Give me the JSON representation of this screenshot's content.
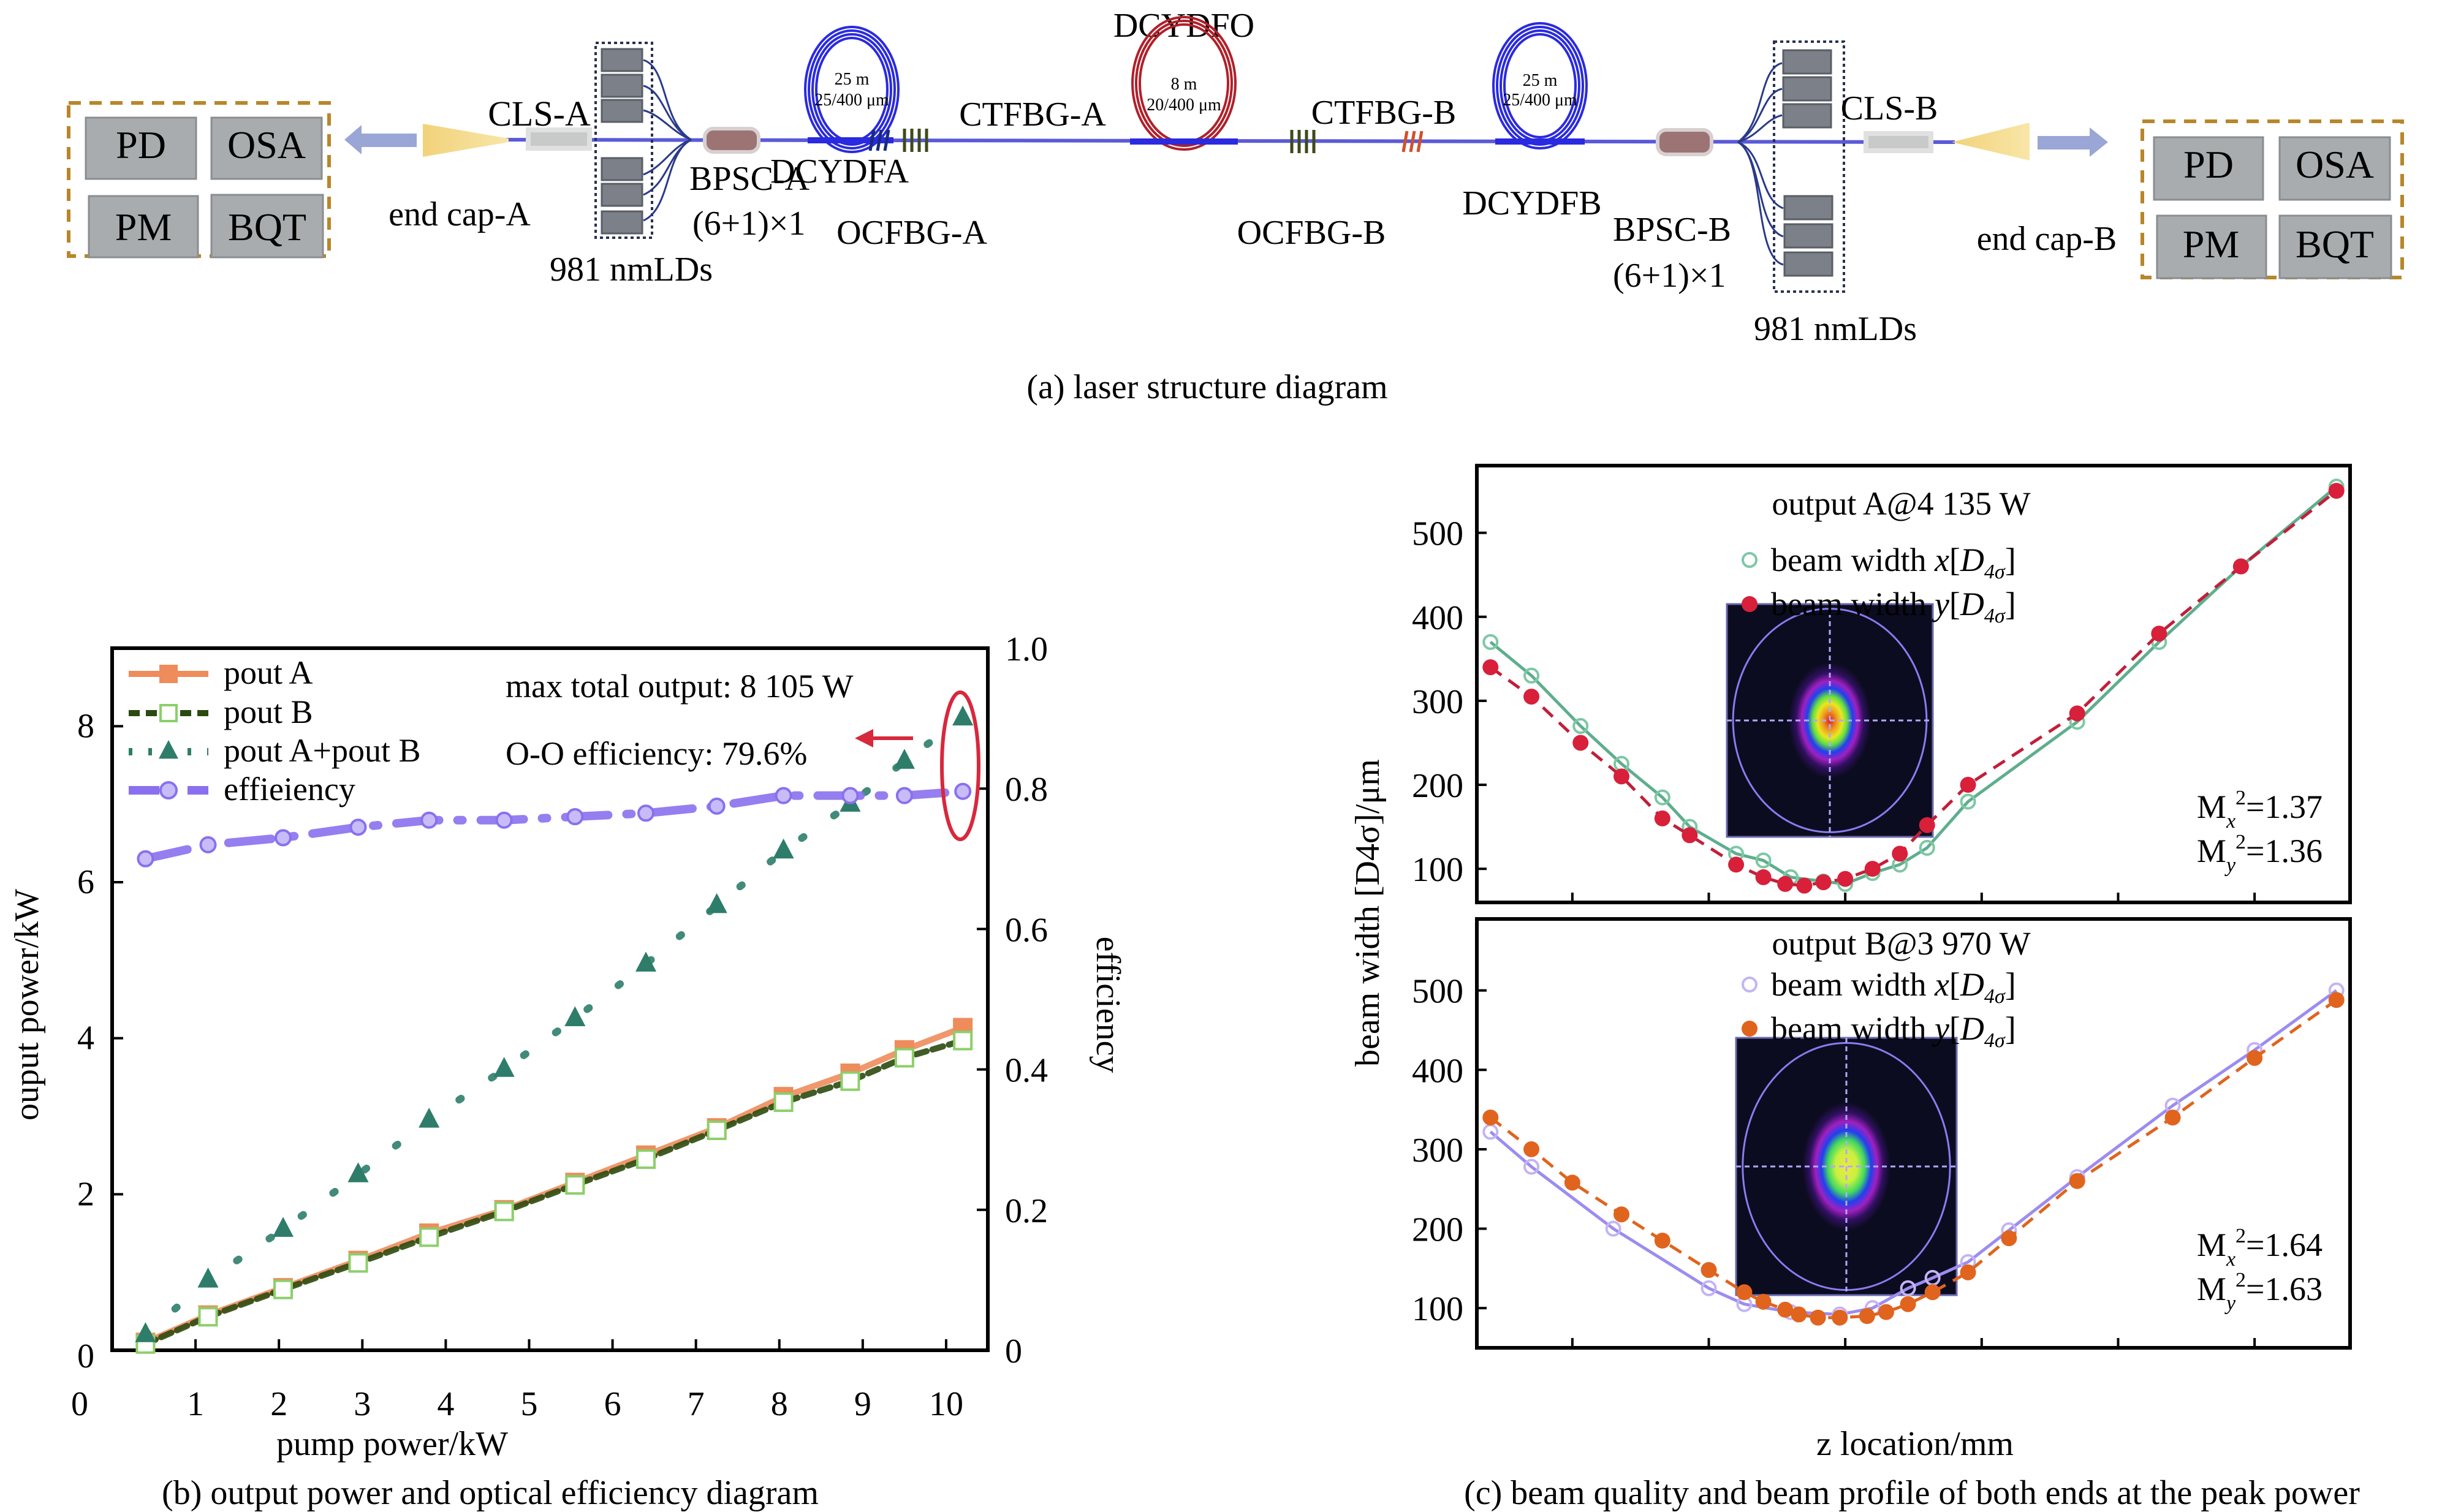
{
  "panel_a": {
    "caption": "(a) laser structure diagram",
    "left_instruments": [
      "PD",
      "OSA",
      "PM",
      "BQT"
    ],
    "right_instruments": [
      "PD",
      "OSA",
      "PM",
      "BQT"
    ],
    "labels": {
      "cls_a": "CLS-A",
      "cls_b": "CLS-B",
      "end_cap_a": "end cap-A",
      "end_cap_b": "end cap-B",
      "bpsc_a": "BPSC-A",
      "bpsc_b": "BPSC-B",
      "combiner_a": "(6+1)×1",
      "combiner_b": "(6+1)×1",
      "lds_a": "981 nmLDs",
      "lds_b": "981 nmLDs",
      "dcydfa": "DCYDFA",
      "dcydfb": "DCYDFB",
      "dcydfo": "DCYDFO",
      "ctfbg_a": "CTFBG-A",
      "ctfbg_b": "CTFBG-B",
      "ocfbg_a": "OCFBG-A",
      "ocfbg_b": "OCFBG-B"
    },
    "coils": {
      "a": {
        "length": "25 m",
        "fiber": "25/400 μm"
      },
      "o": {
        "length": "8 m",
        "fiber": "20/400 μm"
      },
      "b": {
        "length": "25 m",
        "fiber": "25/400 μm"
      }
    },
    "colors": {
      "fiber": "#5a5ad8",
      "gain_coil": "#2a2ae0",
      "oscillator_coil": "#b0202a",
      "instrument_box": "#a8acae",
      "instrument_border": "#b8862a",
      "ld_box": "#7c8088",
      "bpsc": "#9c7474",
      "end_cap": "#f2d27a",
      "arrow": "#9aa6d6",
      "ctfbg_a": "#1a2a7a",
      "ocfbg": "#3e4a1a",
      "ctfbg_b": "#d0502a"
    }
  },
  "chart_data": [
    {
      "id": "b",
      "type": "line",
      "title": "",
      "caption": "(b) output power and optical efficiency diagram",
      "xlabel": "pump power/kW",
      "ylabel": "ouput power/kW",
      "y2label": "efficiency",
      "xlim": [
        0,
        10.5
      ],
      "ylim": [
        0,
        9
      ],
      "y2lim": [
        0,
        1.0
      ],
      "xticks": [
        "0",
        "1",
        "2",
        "3",
        "4",
        "5",
        "6",
        "7",
        "8",
        "9",
        "10"
      ],
      "yticks": [
        "0",
        "2",
        "4",
        "6",
        "8"
      ],
      "y2ticks": [
        "0",
        "0.2",
        "0.4",
        "0.6",
        "0.8",
        "1.0"
      ],
      "x": [
        0.4,
        1.15,
        2.05,
        2.95,
        3.8,
        4.7,
        5.55,
        6.4,
        7.25,
        8.05,
        8.85,
        9.5,
        10.2
      ],
      "series": [
        {
          "name": "pout A",
          "axis": "left",
          "color": "#ee8c5c",
          "style": "solid-square",
          "values": [
            0.1,
            0.45,
            0.8,
            1.15,
            1.5,
            1.8,
            2.15,
            2.5,
            2.85,
            3.25,
            3.55,
            3.85,
            4.135
          ]
        },
        {
          "name": "pout B",
          "axis": "left",
          "color": "#2c4a10",
          "marker_color": "#8ccf6a",
          "style": "dashed-open-square",
          "values": [
            0.08,
            0.43,
            0.78,
            1.12,
            1.45,
            1.78,
            2.12,
            2.45,
            2.82,
            3.18,
            3.45,
            3.75,
            3.97
          ]
        },
        {
          "name": "pout A+pout B",
          "axis": "left",
          "color": "#2e7d6a",
          "style": "dotted-triangle",
          "values": [
            0.2,
            0.9,
            1.55,
            2.25,
            2.95,
            3.6,
            4.25,
            4.95,
            5.7,
            6.4,
            7.0,
            7.55,
            8.105
          ]
        },
        {
          "name": "effieiency",
          "axis": "right",
          "color": "#8a70ee",
          "style": "dashdot-circle",
          "values": [
            0.7,
            0.72,
            0.73,
            0.745,
            0.755,
            0.755,
            0.76,
            0.765,
            0.775,
            0.79,
            0.79,
            0.79,
            0.796
          ]
        }
      ],
      "annotations": [
        "max total output: 8 105 W",
        "O-O efficiency: 79.6%"
      ],
      "highlight_color": "#d8283c",
      "legend": "top-left"
    },
    {
      "id": "c-top",
      "type": "scatter",
      "title": "output A@4 135 W",
      "xlabel": "",
      "ylabel": "beam width [D4σ]/μm",
      "xlim": [
        396.5,
        428.5
      ],
      "ylim": [
        60,
        580
      ],
      "xticks": [
        "400",
        "405",
        "410",
        "415",
        "420",
        "425"
      ],
      "yticks": [
        "100",
        "200",
        "300",
        "400",
        "500"
      ],
      "legend": "top-center",
      "legend_entries": [
        {
          "prefix": "beam width ",
          "var": "x",
          "sub": "4σ",
          "symbol": "D",
          "color": "#7cc8a4",
          "marker": "open-circle"
        },
        {
          "prefix": "beam width ",
          "var": "y",
          "sub": "4σ",
          "symbol": "D",
          "color": "#d8203a",
          "marker": "filled-circle"
        }
      ],
      "m2": [
        {
          "axis": "x",
          "value": "=1.37"
        },
        {
          "axis": "y",
          "value": "=1.36"
        }
      ],
      "series": [
        {
          "name": "beam width x",
          "color": "#5fae8e",
          "line": "solid",
          "x": [
            397,
            398.5,
            400.3,
            401.8,
            403.3,
            404.3,
            406,
            407,
            408,
            409.2,
            410,
            411,
            412,
            413,
            414.5,
            418.5,
            421.5,
            424.5,
            428
          ],
          "values": [
            370,
            330,
            270,
            225,
            185,
            150,
            118,
            110,
            90,
            85,
            82,
            95,
            105,
            125,
            180,
            275,
            370,
            460,
            555
          ]
        },
        {
          "name": "beam width y",
          "color": "#c0203a",
          "line": "dashed",
          "x": [
            397,
            398.5,
            400.3,
            401.8,
            403.3,
            404.3,
            406,
            407,
            407.8,
            408.5,
            409.2,
            410,
            411,
            412,
            413,
            414.5,
            418.5,
            421.5,
            424.5,
            428
          ],
          "values": [
            340,
            305,
            250,
            210,
            160,
            140,
            105,
            90,
            82,
            80,
            84,
            88,
            100,
            118,
            152,
            200,
            285,
            380,
            460,
            550
          ]
        }
      ]
    },
    {
      "id": "c-bottom",
      "type": "scatter",
      "title": "output B@3 970 W",
      "xlabel": "z location/mm",
      "ylabel": "beam width [D4σ]/μm",
      "caption": "(c) beam quality and beam profile of both ends at the peak power",
      "xlim": [
        396.5,
        428.5
      ],
      "ylim": [
        50,
        590
      ],
      "xticks": [
        "400",
        "405",
        "410",
        "415",
        "420",
        "425"
      ],
      "yticks": [
        "100",
        "200",
        "300",
        "400",
        "500"
      ],
      "legend": "top-center",
      "legend_entries": [
        {
          "prefix": "beam width ",
          "var": "x",
          "sub": "4σ",
          "symbol": "D",
          "color": "#c4b4f4",
          "marker": "open-circle"
        },
        {
          "prefix": "beam width ",
          "var": "y",
          "sub": "4σ",
          "symbol": "D",
          "color": "#e0641e",
          "marker": "filled-circle"
        }
      ],
      "m2": [
        {
          "axis": "x",
          "value": "=1.64"
        },
        {
          "axis": "y",
          "value": "=1.63"
        }
      ],
      "series": [
        {
          "name": "beam width x",
          "color": "#9c8cf0",
          "line": "solid",
          "x": [
            397,
            398.5,
            401.5,
            405,
            406.3,
            408,
            409.8,
            411,
            412.3,
            413.2,
            414.5,
            416,
            418.5,
            422,
            425,
            428
          ],
          "values": [
            322,
            278,
            200,
            125,
            105,
            95,
            92,
            100,
            125,
            138,
            158,
            198,
            265,
            355,
            425,
            500
          ]
        },
        {
          "name": "beam width y",
          "color": "#e0641e",
          "line": "dashed",
          "x": [
            397,
            398.5,
            400,
            401.8,
            403.3,
            405,
            406.3,
            407,
            407.8,
            408.3,
            409,
            409.8,
            410.8,
            411.5,
            412.3,
            413.2,
            414.5,
            416,
            418.5,
            422,
            425,
            428
          ],
          "values": [
            340,
            300,
            258,
            218,
            185,
            148,
            120,
            108,
            98,
            92,
            88,
            88,
            90,
            95,
            105,
            120,
            145,
            188,
            260,
            340,
            415,
            488
          ]
        }
      ]
    }
  ]
}
